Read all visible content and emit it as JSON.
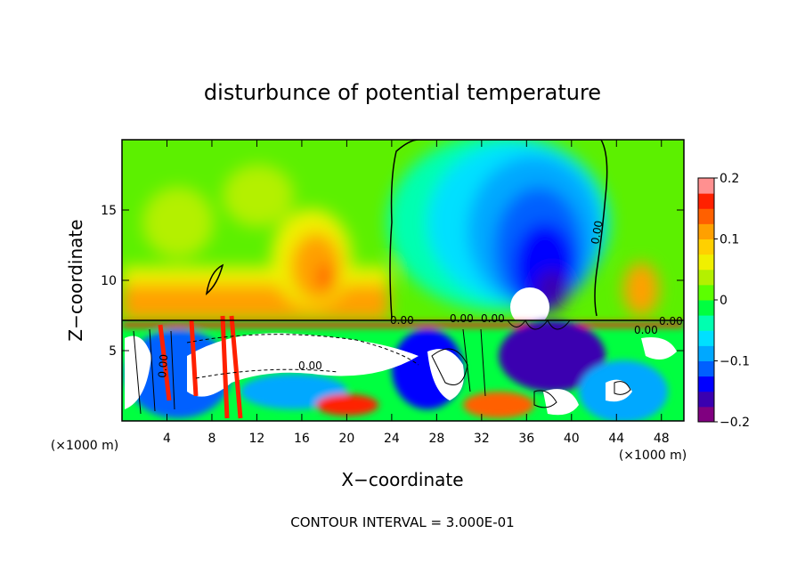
{
  "chart_data": {
    "type": "heatmap",
    "title": "disturbunce of potential temperature",
    "xlabel": "X−coordinate",
    "ylabel": "Z−coordinate",
    "x_unit": "(×1000 m)",
    "x_unit_right": "(×1000 m)",
    "xlim": [
      0,
      50
    ],
    "ylim": [
      0,
      20
    ],
    "x_ticks": [
      4,
      8,
      12,
      16,
      20,
      24,
      28,
      32,
      36,
      40,
      44,
      48
    ],
    "y_ticks": [
      5,
      10,
      15
    ],
    "colorbar": {
      "min": -0.2,
      "max": 0.2,
      "tick_values": [
        0.2,
        0.1,
        0,
        -0.1,
        -0.2
      ],
      "tick_labels": [
        "0.2",
        "0.1",
        "0",
        "−0.1",
        "−0.2"
      ],
      "colors": [
        "#800080",
        "#3a00b0",
        "#0000ff",
        "#0060ff",
        "#00a8ff",
        "#00e0ff",
        "#00ffb0",
        "#00ff40",
        "#5cff00",
        "#b4f000",
        "#f0f000",
        "#ffd000",
        "#ffa000",
        "#ff6000",
        "#ff2000",
        "#ff9090"
      ]
    },
    "contour_labels": [
      "0.00",
      "0.00",
      "0.00",
      "0.00",
      "0.00",
      "0.00",
      "0.00",
      "0.00"
    ],
    "features": [
      {
        "name": "cold-anomaly",
        "x": 35,
        "z": 12,
        "value": -0.19
      },
      {
        "name": "warm-anomaly",
        "x": 18,
        "z": 11,
        "value": 0.14
      },
      {
        "name": "warm-anomaly-right",
        "x": 46,
        "z": 9,
        "value": 0.08
      }
    ],
    "annotation": "CONTOUR INTERVAL = 3.000E-01"
  }
}
